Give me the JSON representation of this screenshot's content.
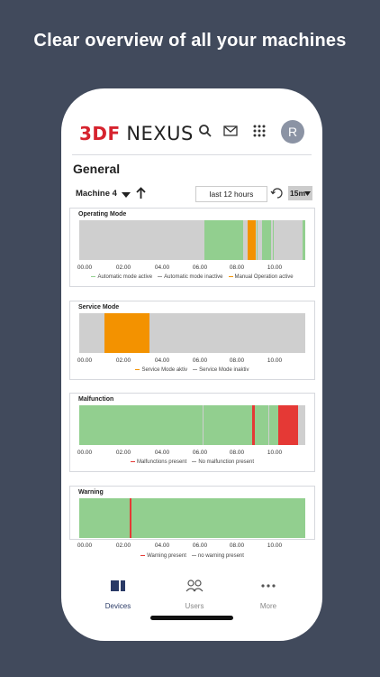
{
  "headline": "Clear overview of all your machines",
  "app": {
    "brand": "3DF",
    "name": "NEXUS",
    "avatar_initial": "R"
  },
  "page_title": "General",
  "toolbar": {
    "machine": "Machine 4",
    "time_range": "last 12 hours",
    "interval": "15m"
  },
  "colors": {
    "grey": "#cfcfcf",
    "green": "#92cf8f",
    "orange": "#f39200",
    "red": "#e53935",
    "nav_active": "#2a3a66"
  },
  "charts": [
    {
      "title": "Operating Mode",
      "segments": [
        {
          "start": 0.0,
          "end": 0.555,
          "color": "grey"
        },
        {
          "start": 0.555,
          "end": 0.725,
          "color": "green"
        },
        {
          "start": 0.725,
          "end": 0.745,
          "color": "grey"
        },
        {
          "start": 0.745,
          "end": 0.78,
          "color": "orange"
        },
        {
          "start": 0.78,
          "end": 0.785,
          "color": "grey"
        },
        {
          "start": 0.785,
          "end": 0.79,
          "color": "green"
        },
        {
          "start": 0.79,
          "end": 0.81,
          "color": "grey"
        },
        {
          "start": 0.81,
          "end": 0.85,
          "color": "green"
        },
        {
          "start": 0.85,
          "end": 0.855,
          "color": "grey"
        },
        {
          "start": 0.855,
          "end": 0.86,
          "color": "green"
        },
        {
          "start": 0.86,
          "end": 0.99,
          "color": "grey"
        },
        {
          "start": 0.99,
          "end": 1.0,
          "color": "green"
        }
      ],
      "ticks": [
        "00.00",
        "02.00",
        "04.00",
        "06.00",
        "08.00",
        "10.00"
      ],
      "legend": [
        {
          "label": "Automatic mode active",
          "color": "green"
        },
        {
          "label": "Automatic mode inactive",
          "color": "grey"
        },
        {
          "label": "Manual Operation active",
          "color": "orange"
        }
      ]
    },
    {
      "title": "Service Mode",
      "segments": [
        {
          "start": 0.0,
          "end": 0.11,
          "color": "grey"
        },
        {
          "start": 0.11,
          "end": 0.31,
          "color": "orange"
        },
        {
          "start": 0.31,
          "end": 1.0,
          "color": "grey"
        }
      ],
      "ticks": [
        "00.00",
        "02.00",
        "04.00",
        "06.00",
        "08.00",
        "10.00"
      ],
      "legend": [
        {
          "label": "Service Mode aktiv",
          "color": "orange"
        },
        {
          "label": "Service Mode inaktiv",
          "color": "grey"
        }
      ]
    },
    {
      "title": "Malfunction",
      "segments": [
        {
          "start": 0.0,
          "end": 0.545,
          "color": "green"
        },
        {
          "start": 0.545,
          "end": 0.55,
          "color": "grey"
        },
        {
          "start": 0.55,
          "end": 0.765,
          "color": "green"
        },
        {
          "start": 0.765,
          "end": 0.775,
          "color": "red"
        },
        {
          "start": 0.775,
          "end": 0.835,
          "color": "green"
        },
        {
          "start": 0.835,
          "end": 0.84,
          "color": "grey"
        },
        {
          "start": 0.84,
          "end": 0.88,
          "color": "green"
        },
        {
          "start": 0.88,
          "end": 0.97,
          "color": "red"
        },
        {
          "start": 0.97,
          "end": 1.0,
          "color": "grey"
        }
      ],
      "ticks": [
        "00.00",
        "02.00",
        "04.00",
        "06.00",
        "08.00",
        "10.00"
      ],
      "legend": [
        {
          "label": "Malfunctions present",
          "color": "red"
        },
        {
          "label": "No malfunction present",
          "color": "grey"
        }
      ]
    },
    {
      "title": "Warning",
      "segments": [
        {
          "start": 0.0,
          "end": 0.225,
          "color": "green"
        },
        {
          "start": 0.225,
          "end": 0.232,
          "color": "red"
        },
        {
          "start": 0.232,
          "end": 1.0,
          "color": "green"
        }
      ],
      "ticks": [
        "00.00",
        "02.00",
        "04.00",
        "06.00",
        "08.00",
        "10.00"
      ],
      "legend": [
        {
          "label": "Warning present",
          "color": "red"
        },
        {
          "label": "no warning present",
          "color": "grey"
        }
      ]
    }
  ],
  "nav": [
    {
      "label": "Devices",
      "icon": "devices-icon",
      "active": true
    },
    {
      "label": "Users",
      "icon": "users-icon",
      "active": false
    },
    {
      "label": "More",
      "icon": "more-icon",
      "active": false
    }
  ]
}
